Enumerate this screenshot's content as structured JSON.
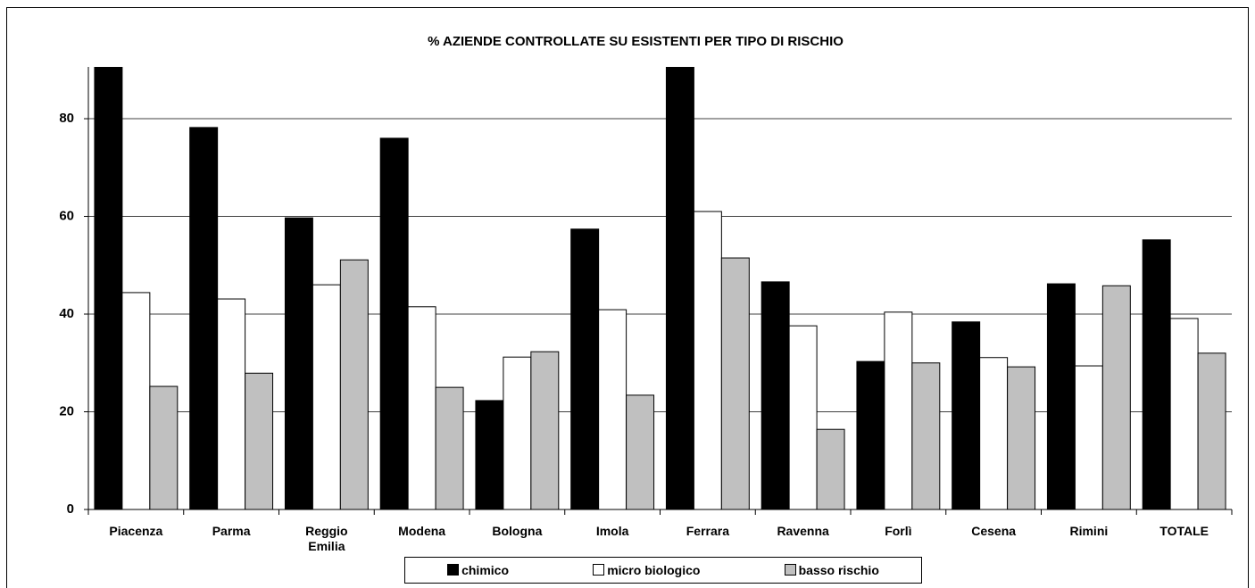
{
  "chart_data": {
    "type": "bar",
    "title": "% AZIENDE CONTROLLATE SU ESISTENTI PER TIPO DI RISCHIO",
    "categories": [
      "Piacenza",
      "Parma",
      "Reggio Emilia",
      "Modena",
      "Bologna",
      "Imola",
      "Ferrara",
      "Ravenna",
      "Forlì",
      "Cesena",
      "Rimini",
      "TOTALE"
    ],
    "series": [
      {
        "name": "chimico",
        "color": "#000000",
        "values": [
          95,
          78.2,
          59.7,
          76.0,
          22.3,
          57.4,
          95,
          46.6,
          30.3,
          38.4,
          46.2,
          55.2
        ]
      },
      {
        "name": "micro biologico",
        "color": "#ffffff",
        "values": [
          44.4,
          43.1,
          46.0,
          41.5,
          31.2,
          40.9,
          61.0,
          37.6,
          40.4,
          31.1,
          29.4,
          39.1
        ]
      },
      {
        "name": "basso rischio",
        "color": "#c0c0c0",
        "values": [
          25.2,
          27.9,
          51.1,
          25.0,
          32.3,
          23.4,
          51.5,
          16.4,
          30.0,
          29.2,
          45.8,
          32.0
        ]
      }
    ],
    "ylim": [
      0,
      90.6
    ],
    "yticks": [
      0,
      20,
      40,
      60,
      80
    ],
    "grid": true,
    "legend": "bottom"
  }
}
